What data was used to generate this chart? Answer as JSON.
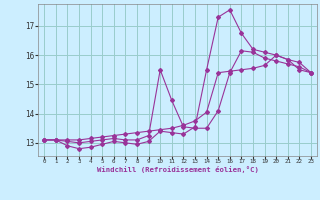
{
  "xlabel": "Windchill (Refroidissement éolien,°C)",
  "bg_color": "#cceeff",
  "line_color": "#993399",
  "grid_color": "#99cccc",
  "x_ticks": [
    0,
    1,
    2,
    3,
    4,
    5,
    6,
    7,
    8,
    9,
    10,
    11,
    12,
    13,
    14,
    15,
    16,
    17,
    18,
    19,
    20,
    21,
    22,
    23
  ],
  "y_ticks": [
    13,
    14,
    15,
    16,
    17
  ],
  "xlim": [
    -0.5,
    23.5
  ],
  "ylim": [
    12.55,
    17.75
  ],
  "line1_x": [
    0,
    1,
    2,
    3,
    4,
    5,
    6,
    7,
    8,
    9,
    10,
    11,
    12,
    13,
    14,
    15,
    16,
    17,
    18,
    19,
    20,
    21,
    22,
    23
  ],
  "line1_y": [
    13.1,
    13.1,
    13.1,
    13.1,
    13.15,
    13.2,
    13.25,
    13.3,
    13.35,
    13.4,
    13.45,
    13.5,
    13.6,
    13.75,
    14.05,
    15.4,
    15.45,
    15.5,
    15.55,
    15.65,
    16.0,
    15.85,
    15.5,
    15.4
  ],
  "line2_x": [
    0,
    1,
    2,
    3,
    4,
    5,
    6,
    7,
    8,
    9,
    10,
    11,
    12,
    13,
    14,
    15,
    16,
    17,
    18,
    19,
    20,
    21,
    22,
    23
  ],
  "line2_y": [
    13.1,
    13.1,
    12.9,
    12.8,
    12.85,
    12.95,
    13.05,
    13.0,
    12.95,
    13.05,
    13.4,
    13.35,
    13.3,
    13.55,
    15.5,
    17.3,
    17.55,
    16.75,
    16.2,
    16.1,
    16.0,
    15.85,
    15.75,
    15.4
  ],
  "line3_x": [
    0,
    1,
    2,
    3,
    4,
    5,
    6,
    7,
    8,
    9,
    10,
    11,
    12,
    13,
    14,
    15,
    16,
    17,
    18,
    19,
    20,
    21,
    22,
    23
  ],
  "line3_y": [
    13.1,
    13.1,
    13.05,
    13.0,
    13.05,
    13.1,
    13.15,
    13.1,
    13.1,
    13.25,
    15.5,
    14.45,
    13.55,
    13.5,
    13.5,
    14.1,
    15.4,
    16.15,
    16.1,
    15.9,
    15.8,
    15.7,
    15.6,
    15.4
  ]
}
